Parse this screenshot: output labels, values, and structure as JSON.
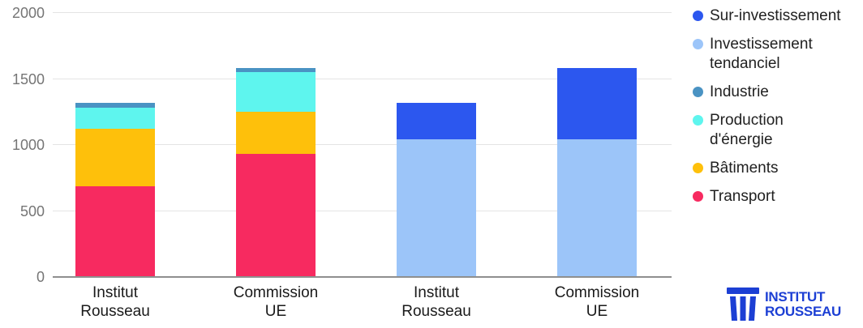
{
  "chart_data": {
    "type": "bar",
    "stacked": true,
    "title": "",
    "xlabel": "",
    "ylabel": "",
    "ylim": [
      0,
      2000
    ],
    "yticks": [
      0,
      500,
      1000,
      1500,
      2000
    ],
    "grid": true,
    "categories": [
      "Institut\nRousseau",
      "Commission\nUE",
      "Institut\nRousseau",
      "Commission\nUE"
    ],
    "series": [
      {
        "name": "Transport",
        "color": "#F72A60",
        "values": [
          690,
          930,
          0,
          0
        ]
      },
      {
        "name": "Bâtiments",
        "color": "#FEC00B",
        "values": [
          435,
          320,
          0,
          0
        ]
      },
      {
        "name": "Production d'énergie",
        "color": "#5EF5EE",
        "values": [
          160,
          300,
          0,
          0
        ]
      },
      {
        "name": "Industrie",
        "color": "#4A93C3",
        "values": [
          35,
          35,
          0,
          0
        ]
      },
      {
        "name": "Investissement tendanciel",
        "color": "#9CC5F9",
        "values": [
          0,
          0,
          1040,
          1040
        ]
      },
      {
        "name": "Sur-investissement",
        "color": "#2C57EF",
        "values": [
          0,
          0,
          280,
          545
        ]
      }
    ],
    "legend": {
      "position": "right",
      "items": [
        {
          "series": "Sur-investissement",
          "label": "Sur-investissement"
        },
        {
          "series": "Investissement tendanciel",
          "label": "Investissement\ntendanciel"
        },
        {
          "series": "Industrie",
          "label": "Industrie"
        },
        {
          "series": "Production d'énergie",
          "label": "Production\nd'énergie"
        },
        {
          "series": "Bâtiments",
          "label": "Bâtiments"
        },
        {
          "series": "Transport",
          "label": "Transport"
        }
      ]
    },
    "styles": {
      "grid_color": "#E4E4E4",
      "baseline_color": "#8F8F8F",
      "tick_label_color": "#757575",
      "category_label_color": "#1A1A1A",
      "legend_text_color": "#212121"
    }
  },
  "branding": {
    "logo_line1": "INSTITUT",
    "logo_line2": "ROUSSEAU",
    "logo_color": "#1C3FD4",
    "logo_icon": "greek-column-icon"
  }
}
